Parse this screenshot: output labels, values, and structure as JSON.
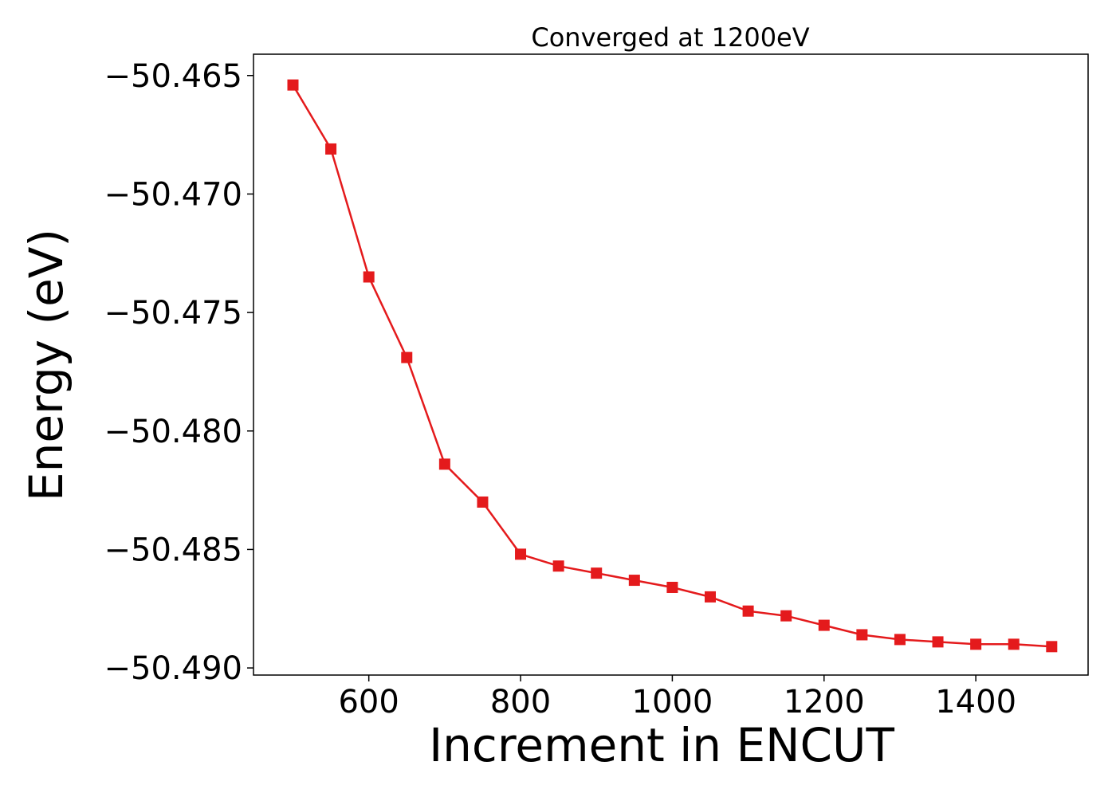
{
  "chart_data": {
    "type": "line",
    "title": "Converged at 1200eV",
    "xlabel": "Increment in ENCUT",
    "ylabel": "Energy (eV)",
    "xlim": [
      448,
      1548
    ],
    "ylim": [
      -50.4903,
      -50.4641
    ],
    "xticks": [
      600,
      800,
      1000,
      1200,
      1400
    ],
    "xtick_labels": [
      "600",
      "800",
      "1000",
      "1200",
      "1400"
    ],
    "yticks": [
      -50.465,
      -50.47,
      -50.475,
      -50.48,
      -50.485,
      -50.49
    ],
    "ytick_labels": [
      "−50.465",
      "−50.470",
      "−50.475",
      "−50.480",
      "−50.485",
      "−50.490"
    ],
    "grid": false,
    "series": [
      {
        "color": "#e41a1c",
        "marker": "square",
        "x": [
          500,
          550,
          600,
          650,
          700,
          750,
          800,
          850,
          900,
          950,
          1000,
          1050,
          1100,
          1150,
          1200,
          1250,
          1300,
          1350,
          1400,
          1450,
          1500
        ],
        "y": [
          -50.4654,
          -50.4681,
          -50.4735,
          -50.4769,
          -50.4814,
          -50.483,
          -50.4852,
          -50.4857,
          -50.486,
          -50.4863,
          -50.4866,
          -50.487,
          -50.4876,
          -50.4878,
          -50.4882,
          -50.4886,
          -50.4888,
          -50.4889,
          -50.489,
          -50.489,
          -50.4891
        ]
      }
    ]
  }
}
